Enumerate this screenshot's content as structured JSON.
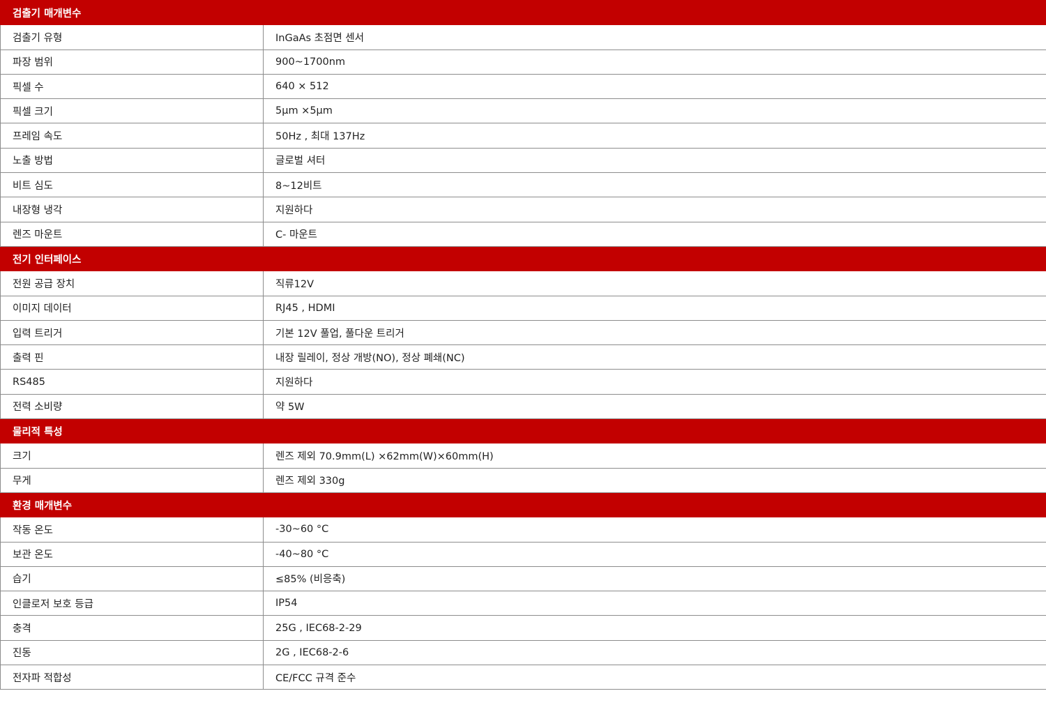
{
  "sections": [
    {
      "title": "검출기 매개변수",
      "rows": [
        {
          "label": "검출기 유형",
          "value": "InGaAs 초점면 센서"
        },
        {
          "label": "파장 범위",
          "value": "900~1700nm"
        },
        {
          "label": "픽셀 수",
          "value": "640 × 512"
        },
        {
          "label": "픽셀 크기",
          "value": "5μm ×5μm"
        },
        {
          "label": "프레임 속도",
          "value": "50Hz , 최대 137Hz"
        },
        {
          "label": "노출 방법",
          "value": "글로벌 셔터"
        },
        {
          "label": "비트 심도",
          "value": "8~12비트"
        },
        {
          "label": "내장형 냉각",
          "value": "지원하다"
        },
        {
          "label": "렌즈 마운트",
          "value": "C- 마운트"
        }
      ]
    },
    {
      "title": "전기 인터페이스",
      "rows": [
        {
          "label": "전원 공급 장치",
          "value": "직류12V"
        },
        {
          "label": "이미지 데이터",
          "value": "RJ45 , HDMI"
        },
        {
          "label": "입력 트리거",
          "value": "기본 12V 풀업, 풀다운 트리거"
        },
        {
          "label": "출력 핀",
          "value": "내장 릴레이, 정상 개방(NO), 정상 폐쇄(NC)"
        },
        {
          "label": "RS485",
          "value": "지원하다"
        },
        {
          "label": "전력 소비량",
          "value": "약 5W"
        }
      ]
    },
    {
      "title": "물리적 특성",
      "rows": [
        {
          "label": "크기",
          "value": "렌즈 제외 70.9mm(L) ×62mm(W)×60mm(H)"
        },
        {
          "label": "무게",
          "value": "렌즈 제외 330g"
        }
      ]
    },
    {
      "title": "환경 매개변수",
      "rows": [
        {
          "label": "작동 온도",
          "value": "-30~60 °C"
        },
        {
          "label": "보관 온도",
          "value": "-40~80 °C"
        },
        {
          "label": "습기",
          "value": "≤85% (비응축)"
        },
        {
          "label": "인클로저 보호 등급",
          "value": "IP54"
        },
        {
          "label": "충격",
          "value": "25G , IEC68-2-29"
        },
        {
          "label": "진동",
          "value": "2G , IEC68-2-6"
        },
        {
          "label": "전자파 적합성",
          "value": "CE/FCC 규격 준수"
        }
      ]
    }
  ],
  "colors": {
    "section_background": "#c20000",
    "section_text": "#ffffff",
    "border": "#8c8c8c",
    "text": "#222222"
  }
}
